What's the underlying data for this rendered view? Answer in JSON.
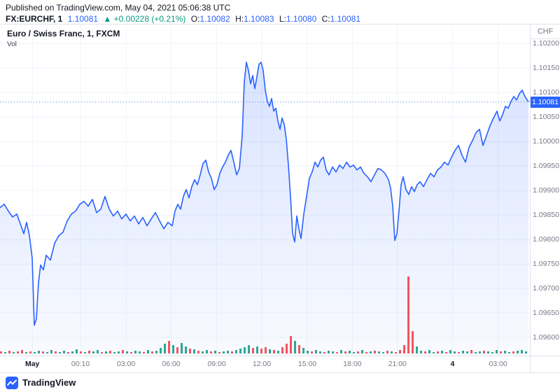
{
  "meta": {
    "published": "Published on TradingView.com, May 04, 2021 05:06:38 UTC"
  },
  "header": {
    "symbol": "FX:EURCHF, 1",
    "last": "1.10081",
    "change": "▲ +0.00228 (+0.21%)",
    "ohlc": [
      {
        "label": "O:",
        "value": "1.10082"
      },
      {
        "label": "H:",
        "value": "1.10083"
      },
      {
        "label": "L:",
        "value": "1.10080"
      },
      {
        "label": "C:",
        "value": "1.10081"
      }
    ]
  },
  "legend": {
    "title": "Euro / Swiss Franc, 1, FXCM",
    "vol_label": "Vol"
  },
  "axis": {
    "currency": "CHF",
    "price_ticks": [
      "1.10200",
      "1.10150",
      "1.10100",
      "1.10050",
      "1.10000",
      "1.09950",
      "1.09900",
      "1.09850",
      "1.09800",
      "1.09750",
      "1.09700",
      "1.09650",
      "1.09600"
    ],
    "time_ticks": [
      {
        "label": "May",
        "x": 0.061,
        "major": true
      },
      {
        "label": "00:10",
        "x": 0.152,
        "major": false
      },
      {
        "label": "03:00",
        "x": 0.238,
        "major": false
      },
      {
        "label": "06:00",
        "x": 0.323,
        "major": false
      },
      {
        "label": "09:00",
        "x": 0.409,
        "major": false
      },
      {
        "label": "12:00",
        "x": 0.494,
        "major": false
      },
      {
        "label": "15:00",
        "x": 0.58,
        "major": false
      },
      {
        "label": "18:00",
        "x": 0.665,
        "major": false
      },
      {
        "label": "21:00",
        "x": 0.75,
        "major": false
      },
      {
        "label": "4",
        "x": 0.854,
        "major": true
      },
      {
        "label": "03:00",
        "x": 0.94,
        "major": false
      }
    ],
    "last_price_label": "1.10081"
  },
  "footer": {
    "brand": "TradingView"
  },
  "colors": {
    "line": "#2962FF",
    "up": "#089981",
    "down": "#F23645",
    "text": "#131722",
    "muted": "#787B86",
    "grid": "#F0F3FA",
    "border": "#E0E3EB"
  },
  "chart_data": {
    "type": "area",
    "title": "Euro / Swiss Franc, 1, FXCM",
    "symbol": "FX:EURCHF",
    "interval": "1",
    "exchange": "FXCM",
    "ohlc": {
      "open": 1.10082,
      "high": 1.10083,
      "low": 1.1008,
      "close": 1.10081
    },
    "change": 0.00228,
    "change_pct": 0.21,
    "last_price": 1.10081,
    "ylim": [
      1.09563,
      1.10239
    ],
    "price_gridlines": [
      1.102,
      1.1015,
      1.101,
      1.1005,
      1.1,
      1.0995,
      1.099,
      1.0985,
      1.098,
      1.0975,
      1.097,
      1.0965,
      1.096
    ],
    "x_axis_labels": [
      "May",
      "00:10",
      "03:00",
      "06:00",
      "09:00",
      "12:00",
      "15:00",
      "18:00",
      "21:00",
      "4",
      "03:00"
    ],
    "points": [
      [
        0,
        1.09865
      ],
      [
        6,
        1.09872
      ],
      [
        12,
        1.09858
      ],
      [
        18,
        1.09846
      ],
      [
        24,
        1.09852
      ],
      [
        30,
        1.09828
      ],
      [
        34,
        1.09812
      ],
      [
        38,
        1.09835
      ],
      [
        42,
        1.09808
      ],
      [
        46,
        1.09762
      ],
      [
        49,
        1.09625
      ],
      [
        52,
        1.09638
      ],
      [
        55,
        1.09712
      ],
      [
        58,
        1.09748
      ],
      [
        62,
        1.09738
      ],
      [
        66,
        1.09768
      ],
      [
        72,
        1.09758
      ],
      [
        78,
        1.09792
      ],
      [
        84,
        1.09808
      ],
      [
        90,
        1.09815
      ],
      [
        96,
        1.09838
      ],
      [
        102,
        1.09852
      ],
      [
        108,
        1.09858
      ],
      [
        114,
        1.09872
      ],
      [
        120,
        1.09878
      ],
      [
        126,
        1.09868
      ],
      [
        132,
        1.09882
      ],
      [
        138,
        1.09855
      ],
      [
        144,
        1.09862
      ],
      [
        150,
        1.09888
      ],
      [
        156,
        1.09862
      ],
      [
        162,
        1.09848
      ],
      [
        168,
        1.09858
      ],
      [
        174,
        1.09842
      ],
      [
        180,
        1.09852
      ],
      [
        186,
        1.09838
      ],
      [
        192,
        1.09848
      ],
      [
        198,
        1.09832
      ],
      [
        204,
        1.09845
      ],
      [
        210,
        1.09828
      ],
      [
        216,
        1.09842
      ],
      [
        222,
        1.09855
      ],
      [
        228,
        1.09838
      ],
      [
        234,
        1.09822
      ],
      [
        240,
        1.09835
      ],
      [
        246,
        1.09828
      ],
      [
        250,
        1.09858
      ],
      [
        254,
        1.09872
      ],
      [
        258,
        1.09862
      ],
      [
        262,
        1.09888
      ],
      [
        266,
        1.09902
      ],
      [
        270,
        1.09885
      ],
      [
        274,
        1.09908
      ],
      [
        278,
        1.09922
      ],
      [
        282,
        1.09912
      ],
      [
        286,
        1.09932
      ],
      [
        290,
        1.09955
      ],
      [
        294,
        1.09962
      ],
      [
        298,
        1.09938
      ],
      [
        302,
        1.09925
      ],
      [
        306,
        1.09902
      ],
      [
        310,
        1.09912
      ],
      [
        314,
        1.09935
      ],
      [
        318,
        1.09948
      ],
      [
        322,
        1.09958
      ],
      [
        326,
        1.09972
      ],
      [
        330,
        1.09982
      ],
      [
        334,
        1.09958
      ],
      [
        338,
        1.09932
      ],
      [
        342,
        1.09945
      ],
      [
        346,
        1.10012
      ],
      [
        349,
        1.10122
      ],
      [
        352,
        1.10162
      ],
      [
        355,
        1.10145
      ],
      [
        358,
        1.10118
      ],
      [
        361,
        1.10135
      ],
      [
        364,
        1.10108
      ],
      [
        367,
        1.10132
      ],
      [
        370,
        1.10158
      ],
      [
        373,
        1.10162
      ],
      [
        376,
        1.10145
      ],
      [
        379,
        1.10105
      ],
      [
        382,
        1.10082
      ],
      [
        385,
        1.10072
      ],
      [
        388,
        1.10088
      ],
      [
        391,
        1.10062
      ],
      [
        394,
        1.10068
      ],
      [
        397,
        1.10042
      ],
      [
        400,
        1.10025
      ],
      [
        403,
        1.10048
      ],
      [
        406,
        1.10035
      ],
      [
        409,
        1.10005
      ],
      [
        412,
        1.09952
      ],
      [
        415,
        1.09888
      ],
      [
        418,
        1.09812
      ],
      [
        421,
        1.09795
      ],
      [
        424,
        1.09848
      ],
      [
        427,
        1.09822
      ],
      [
        430,
        1.09802
      ],
      [
        434,
        1.09852
      ],
      [
        438,
        1.09888
      ],
      [
        442,
        1.09925
      ],
      [
        446,
        1.09938
      ],
      [
        450,
        1.09958
      ],
      [
        454,
        1.09948
      ],
      [
        458,
        1.09962
      ],
      [
        462,
        1.09968
      ],
      [
        466,
        1.09942
      ],
      [
        470,
        1.09932
      ],
      [
        475,
        1.09948
      ],
      [
        480,
        1.09938
      ],
      [
        485,
        1.09952
      ],
      [
        490,
        1.09945
      ],
      [
        495,
        1.09958
      ],
      [
        500,
        1.09948
      ],
      [
        505,
        1.09952
      ],
      [
        510,
        1.09942
      ],
      [
        515,
        1.09948
      ],
      [
        520,
        1.09935
      ],
      [
        525,
        1.09928
      ],
      [
        530,
        1.09918
      ],
      [
        535,
        1.09932
      ],
      [
        540,
        1.09945
      ],
      [
        545,
        1.09942
      ],
      [
        550,
        1.09935
      ],
      [
        555,
        1.09922
      ],
      [
        558,
        1.09905
      ],
      [
        561,
        1.09868
      ],
      [
        564,
        1.09798
      ],
      [
        567,
        1.09812
      ],
      [
        570,
        1.09858
      ],
      [
        573,
        1.09912
      ],
      [
        576,
        1.09928
      ],
      [
        580,
        1.09902
      ],
      [
        584,
        1.09892
      ],
      [
        588,
        1.09908
      ],
      [
        592,
        1.09898
      ],
      [
        596,
        1.09912
      ],
      [
        600,
        1.09918
      ],
      [
        605,
        1.09908
      ],
      [
        610,
        1.09922
      ],
      [
        615,
        1.09935
      ],
      [
        620,
        1.09928
      ],
      [
        625,
        1.09942
      ],
      [
        630,
        1.09948
      ],
      [
        635,
        1.09958
      ],
      [
        640,
        1.09952
      ],
      [
        645,
        1.09968
      ],
      [
        650,
        1.09982
      ],
      [
        655,
        1.09992
      ],
      [
        660,
        1.09972
      ],
      [
        665,
        1.09958
      ],
      [
        670,
        1.09988
      ],
      [
        675,
        1.10002
      ],
      [
        680,
        1.10018
      ],
      [
        685,
        1.10025
      ],
      [
        690,
        1.09992
      ],
      [
        695,
        1.10012
      ],
      [
        700,
        1.10032
      ],
      [
        705,
        1.10048
      ],
      [
        710,
        1.10062
      ],
      [
        714,
        1.10042
      ],
      [
        718,
        1.10055
      ],
      [
        722,
        1.10072
      ],
      [
        726,
        1.10068
      ],
      [
        730,
        1.10082
      ],
      [
        734,
        1.10092
      ],
      [
        738,
        1.10085
      ],
      [
        742,
        1.10098
      ],
      [
        746,
        1.10105
      ],
      [
        750,
        1.10092
      ],
      [
        755,
        1.10081
      ]
    ],
    "volume_bars": [
      [
        3,
        "r"
      ],
      [
        2,
        "g"
      ],
      [
        4,
        "r"
      ],
      [
        2,
        "g"
      ],
      [
        3,
        "r"
      ],
      [
        5,
        "r"
      ],
      [
        2,
        "g"
      ],
      [
        3,
        "r"
      ],
      [
        2,
        "g"
      ],
      [
        4,
        "g"
      ],
      [
        3,
        "r"
      ],
      [
        2,
        "g"
      ],
      [
        5,
        "g"
      ],
      [
        3,
        "r"
      ],
      [
        2,
        "g"
      ],
      [
        4,
        "g"
      ],
      [
        2,
        "r"
      ],
      [
        3,
        "g"
      ],
      [
        6,
        "g"
      ],
      [
        3,
        "r"
      ],
      [
        2,
        "g"
      ],
      [
        4,
        "r"
      ],
      [
        3,
        "g"
      ],
      [
        5,
        "g"
      ],
      [
        2,
        "r"
      ],
      [
        3,
        "g"
      ],
      [
        4,
        "r"
      ],
      [
        2,
        "g"
      ],
      [
        3,
        "g"
      ],
      [
        5,
        "r"
      ],
      [
        3,
        "g"
      ],
      [
        2,
        "r"
      ],
      [
        4,
        "g"
      ],
      [
        3,
        "g"
      ],
      [
        2,
        "r"
      ],
      [
        5,
        "g"
      ],
      [
        3,
        "r"
      ],
      [
        4,
        "g"
      ],
      [
        8,
        "g"
      ],
      [
        14,
        "g"
      ],
      [
        18,
        "r"
      ],
      [
        12,
        "g"
      ],
      [
        9,
        "r"
      ],
      [
        15,
        "g"
      ],
      [
        10,
        "g"
      ],
      [
        7,
        "r"
      ],
      [
        6,
        "g"
      ],
      [
        4,
        "r"
      ],
      [
        3,
        "g"
      ],
      [
        5,
        "g"
      ],
      [
        3,
        "r"
      ],
      [
        4,
        "g"
      ],
      [
        2,
        "r"
      ],
      [
        3,
        "g"
      ],
      [
        4,
        "g"
      ],
      [
        3,
        "r"
      ],
      [
        5,
        "g"
      ],
      [
        7,
        "g"
      ],
      [
        9,
        "g"
      ],
      [
        12,
        "g"
      ],
      [
        8,
        "r"
      ],
      [
        10,
        "g"
      ],
      [
        7,
        "r"
      ],
      [
        9,
        "r"
      ],
      [
        6,
        "g"
      ],
      [
        5,
        "r"
      ],
      [
        4,
        "g"
      ],
      [
        9,
        "r"
      ],
      [
        14,
        "r"
      ],
      [
        25,
        "r"
      ],
      [
        18,
        "g"
      ],
      [
        12,
        "r"
      ],
      [
        8,
        "g"
      ],
      [
        4,
        "g"
      ],
      [
        3,
        "r"
      ],
      [
        5,
        "g"
      ],
      [
        3,
        "g"
      ],
      [
        2,
        "r"
      ],
      [
        4,
        "g"
      ],
      [
        3,
        "g"
      ],
      [
        2,
        "r"
      ],
      [
        5,
        "g"
      ],
      [
        3,
        "r"
      ],
      [
        4,
        "g"
      ],
      [
        2,
        "g"
      ],
      [
        3,
        "r"
      ],
      [
        5,
        "g"
      ],
      [
        2,
        "r"
      ],
      [
        3,
        "g"
      ],
      [
        4,
        "r"
      ],
      [
        3,
        "g"
      ],
      [
        2,
        "g"
      ],
      [
        4,
        "r"
      ],
      [
        3,
        "g"
      ],
      [
        2,
        "r"
      ],
      [
        5,
        "r"
      ],
      [
        12,
        "r"
      ],
      [
        110,
        "r"
      ],
      [
        32,
        "r"
      ],
      [
        10,
        "g"
      ],
      [
        4,
        "g"
      ],
      [
        3,
        "r"
      ],
      [
        5,
        "g"
      ],
      [
        2,
        "g"
      ],
      [
        3,
        "r"
      ],
      [
        4,
        "g"
      ],
      [
        2,
        "r"
      ],
      [
        5,
        "g"
      ],
      [
        3,
        "g"
      ],
      [
        2,
        "r"
      ],
      [
        4,
        "g"
      ],
      [
        3,
        "g"
      ],
      [
        5,
        "r"
      ],
      [
        2,
        "g"
      ],
      [
        3,
        "g"
      ],
      [
        4,
        "r"
      ],
      [
        3,
        "g"
      ],
      [
        2,
        "g"
      ],
      [
        5,
        "g"
      ],
      [
        3,
        "r"
      ],
      [
        4,
        "g"
      ],
      [
        2,
        "g"
      ],
      [
        3,
        "r"
      ],
      [
        4,
        "g"
      ],
      [
        5,
        "g"
      ],
      [
        3,
        "g"
      ]
    ]
  }
}
